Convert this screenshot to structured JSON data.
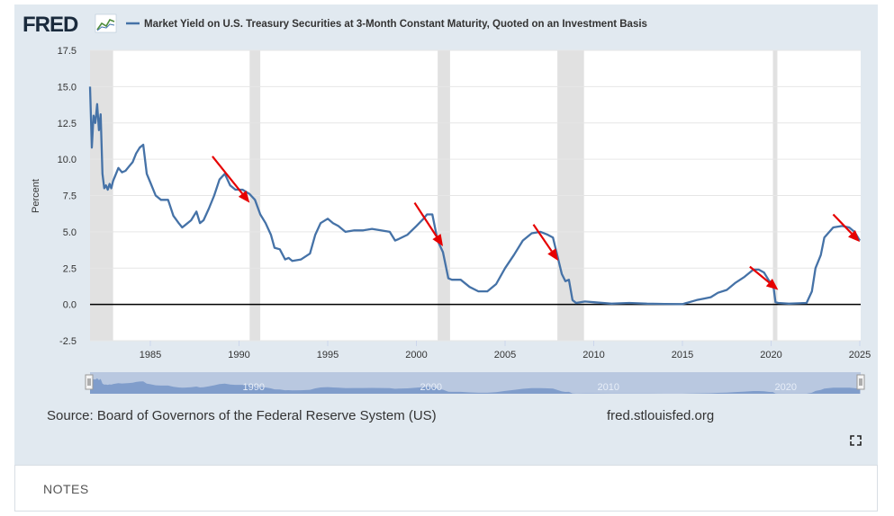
{
  "header": {
    "logo": "FRED",
    "logo_icon": "chart-line-icon",
    "title": "Market Yield on U.S. Treasury Securities at 3-Month Constant Maturity, Quoted on an Investment Basis"
  },
  "footer": {
    "source": "Source: Board of Governors of the Federal Reserve System (US)",
    "site": "fred.stlouisfed.org",
    "fullscreen_icon": "fullscreen-icon"
  },
  "notes": {
    "label": "NOTES"
  },
  "navigator": {
    "labels": [
      "1990",
      "2000",
      "2010",
      "2020"
    ]
  },
  "colors": {
    "series": "#4572a7",
    "recession": "#e1e1e1",
    "arrow": "#e60000",
    "panel": "#e1e9f0"
  },
  "chart_data": {
    "type": "line",
    "title": "Market Yield on U.S. Treasury Securities at 3-Month Constant Maturity, Quoted on an Investment Basis",
    "ylabel": "Percent",
    "xlabel": "",
    "xlim": [
      1981.6,
      2025.05
    ],
    "ylim": [
      -2.5,
      17.5
    ],
    "yticks": [
      "-2.5",
      "0.0",
      "2.5",
      "5.0",
      "7.5",
      "10.0",
      "12.5",
      "15.0",
      "17.5"
    ],
    "xticks": [
      "1985",
      "1990",
      "1995",
      "2000",
      "2005",
      "2010",
      "2015",
      "2020",
      "2025"
    ],
    "grid": true,
    "zero_line": true,
    "recessions": [
      [
        1981.6,
        1982.9
      ],
      [
        1990.6,
        1991.2
      ],
      [
        2001.2,
        2001.9
      ],
      [
        2007.95,
        2009.45
      ],
      [
        2020.1,
        2020.35
      ]
    ],
    "annotation_arrows": [
      {
        "from": [
          1988.5,
          10.2
        ],
        "to": [
          1990.6,
          7.0
        ]
      },
      {
        "from": [
          1999.9,
          7.0
        ],
        "to": [
          2001.5,
          4.0
        ]
      },
      {
        "from": [
          2006.6,
          5.5
        ],
        "to": [
          2008.0,
          3.0
        ]
      },
      {
        "from": [
          2018.8,
          2.6
        ],
        "to": [
          2020.4,
          1.0
        ]
      },
      {
        "from": [
          2023.5,
          6.2
        ],
        "to": [
          2025.0,
          4.3
        ]
      }
    ],
    "series": [
      {
        "x": [
          1981.6,
          1981.7,
          1981.8,
          1981.9,
          1982.0,
          1982.1,
          1982.2,
          1982.3,
          1982.4,
          1982.5,
          1982.6,
          1982.7,
          1982.8,
          1982.9,
          1983.0,
          1983.2,
          1983.4,
          1983.6,
          1983.8,
          1984.0,
          1984.2,
          1984.4,
          1984.6,
          1984.8,
          1985.0,
          1985.3,
          1985.6,
          1986.0,
          1986.3,
          1986.6,
          1986.8,
          1987.0,
          1987.3,
          1987.6,
          1987.8,
          1988.0,
          1988.3,
          1988.6,
          1988.9,
          1989.2,
          1989.5,
          1989.8,
          1990.2,
          1990.6,
          1990.9,
          1991.2,
          1991.5,
          1991.8,
          1992.0,
          1992.3,
          1992.6,
          1992.8,
          1993.0,
          1993.5,
          1994.0,
          1994.3,
          1994.6,
          1995.0,
          1995.3,
          1995.6,
          1996.0,
          1996.5,
          1997.0,
          1997.5,
          1998.0,
          1998.5,
          1998.8,
          1999.0,
          1999.5,
          2000.0,
          2000.4,
          2000.6,
          2000.9,
          2001.2,
          2001.5,
          2001.8,
          2002.0,
          2002.5,
          2003.0,
          2003.5,
          2004.0,
          2004.5,
          2005.0,
          2005.5,
          2006.0,
          2006.5,
          2007.0,
          2007.4,
          2007.7,
          2008.0,
          2008.2,
          2008.4,
          2008.6,
          2008.8,
          2009.0,
          2009.5,
          2010.0,
          2011.0,
          2012.0,
          2013.0,
          2014.0,
          2015.0,
          2015.8,
          2016.2,
          2016.6,
          2017.0,
          2017.5,
          2018.0,
          2018.5,
          2019.0,
          2019.3,
          2019.6,
          2019.9,
          2020.1,
          2020.25,
          2020.4,
          2021.0,
          2022.0,
          2022.3,
          2022.5,
          2022.8,
          2023.0,
          2023.5,
          2024.0,
          2024.4,
          2024.7,
          2025.0
        ],
        "values": [
          15.0,
          10.8,
          13.0,
          12.5,
          13.8,
          12.0,
          13.1,
          9.0,
          8.0,
          8.2,
          7.9,
          8.3,
          8.0,
          8.5,
          8.8,
          9.4,
          9.1,
          9.2,
          9.5,
          9.8,
          10.4,
          10.8,
          11.0,
          9.0,
          8.4,
          7.5,
          7.2,
          7.2,
          6.1,
          5.6,
          5.3,
          5.5,
          5.8,
          6.4,
          5.6,
          5.8,
          6.6,
          7.5,
          8.6,
          9.0,
          8.2,
          7.9,
          7.9,
          7.6,
          7.2,
          6.2,
          5.6,
          4.8,
          3.9,
          3.8,
          3.1,
          3.2,
          3.0,
          3.1,
          3.5,
          4.8,
          5.6,
          5.9,
          5.6,
          5.4,
          5.0,
          5.1,
          5.1,
          5.2,
          5.1,
          5.0,
          4.4,
          4.5,
          4.8,
          5.4,
          5.9,
          6.2,
          6.2,
          4.4,
          3.6,
          1.8,
          1.7,
          1.7,
          1.2,
          0.9,
          0.9,
          1.4,
          2.5,
          3.4,
          4.4,
          4.9,
          5.0,
          4.8,
          4.6,
          3.1,
          2.1,
          1.6,
          1.7,
          0.3,
          0.1,
          0.2,
          0.15,
          0.05,
          0.1,
          0.05,
          0.03,
          0.02,
          0.3,
          0.4,
          0.5,
          0.8,
          1.0,
          1.5,
          1.9,
          2.4,
          2.4,
          2.2,
          1.6,
          1.5,
          0.15,
          0.1,
          0.05,
          0.1,
          0.9,
          2.5,
          3.4,
          4.6,
          5.3,
          5.4,
          5.3,
          5.0,
          4.4
        ]
      }
    ]
  }
}
